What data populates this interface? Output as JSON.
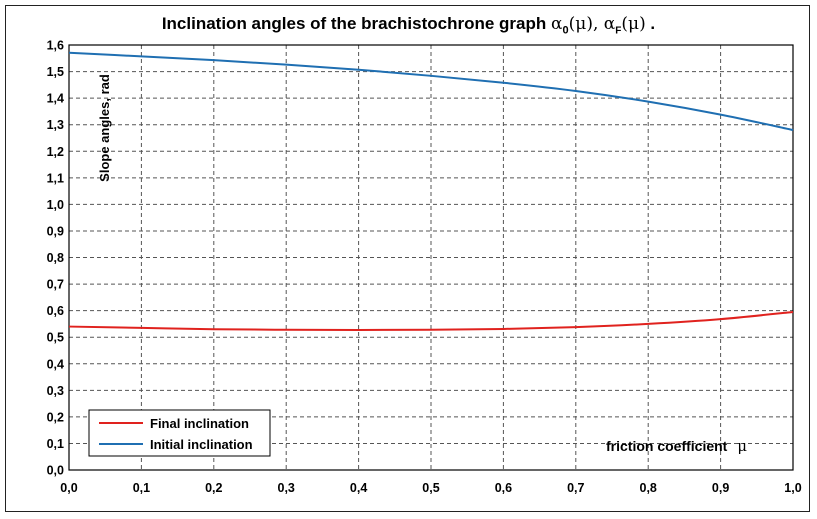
{
  "chart_data": {
    "type": "line",
    "title_main": "Inclination angles of the brachistochrone graph",
    "title_symbols": {
      "alpha": "α",
      "sub0": "0",
      "subF": "F",
      "mu": "μ",
      "open": "(",
      "close": ")",
      "sep": ", ",
      "end": " ."
    },
    "xlabel": "friction coefficient",
    "xlabel_symbol": "μ",
    "ylabel": "Slope angles, rad",
    "xlim": [
      0,
      1
    ],
    "ylim": [
      0,
      1.6
    ],
    "x_ticks": [
      "0,0",
      "0,1",
      "0,2",
      "0,3",
      "0,4",
      "0,5",
      "0,6",
      "0,7",
      "0,8",
      "0,9",
      "1,0"
    ],
    "y_ticks": [
      "0,0",
      "0,1",
      "0,2",
      "0,3",
      "0,4",
      "0,5",
      "0,6",
      "0,7",
      "0,8",
      "0,9",
      "1,0",
      "1,1",
      "1,2",
      "1,3",
      "1,4",
      "1,5",
      "1,6"
    ],
    "grid": true,
    "legend_position": "bottom-left",
    "x": [
      0,
      0.1,
      0.2,
      0.3,
      0.4,
      0.5,
      0.6,
      0.7,
      0.8,
      0.9,
      1.0
    ],
    "series": [
      {
        "name": "Final inclination",
        "color": "#e0221e",
        "values": [
          0.54,
          0.535,
          0.53,
          0.528,
          0.527,
          0.528,
          0.531,
          0.538,
          0.55,
          0.568,
          0.595
        ]
      },
      {
        "name": "Initial inclination",
        "color": "#1f6fb2",
        "values": [
          1.571,
          1.557,
          1.543,
          1.526,
          1.507,
          1.484,
          1.458,
          1.427,
          1.387,
          1.338,
          1.28
        ]
      }
    ]
  }
}
